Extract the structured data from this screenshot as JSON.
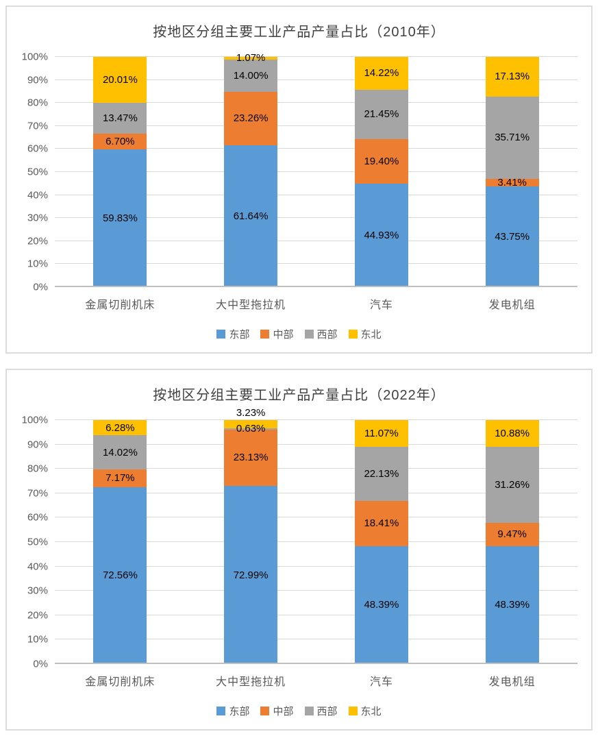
{
  "colors": {
    "east_blue": "#5B9BD5",
    "central_orange": "#ED7D31",
    "west_gray": "#A5A5A5",
    "northeast_yellow": "#FFC000",
    "gridline": "#D9D9D9",
    "axis_line": "#BFBFBF",
    "tick_text": "#595959",
    "category_text": "#595959",
    "title_text": "#404040",
    "data_label_text": "#000000",
    "card_border": "#DCDCDC",
    "card_background": "#FFFFFF"
  },
  "chart_data": [
    {
      "type": "bar",
      "subtype": "percent-stacked-column",
      "title": "按地区分组主要工业产品产量占比（2010年）",
      "categories": [
        "金属切削机床",
        "大中型拖拉机",
        "汽车",
        "发电机组"
      ],
      "series": [
        {
          "name": "东部",
          "color": "#5B9BD5",
          "values": [
            59.83,
            61.64,
            44.93,
            43.75
          ]
        },
        {
          "name": "中部",
          "color": "#ED7D31",
          "values": [
            6.7,
            23.26,
            19.4,
            3.41
          ]
        },
        {
          "name": "西部",
          "color": "#A5A5A5",
          "values": [
            13.47,
            14.0,
            21.45,
            35.71
          ]
        },
        {
          "name": "东北",
          "color": "#FFC000",
          "values": [
            20.01,
            1.07,
            14.22,
            17.13
          ]
        }
      ],
      "data_label_format": "0.00%",
      "ylim": [
        0,
        100
      ],
      "ytick_step": 10,
      "ytick_labels": [
        "0%",
        "10%",
        "20%",
        "30%",
        "40%",
        "50%",
        "60%",
        "70%",
        "80%",
        "90%",
        "100%"
      ],
      "grid": true,
      "legend_position": "bottom",
      "label_overrides": []
    },
    {
      "type": "bar",
      "subtype": "percent-stacked-column",
      "title": "按地区分组主要工业产品产量占比（2022年）",
      "categories": [
        "金属切削机床",
        "大中型拖拉机",
        "汽车",
        "发电机组"
      ],
      "series": [
        {
          "name": "东部",
          "color": "#5B9BD5",
          "values": [
            72.56,
            72.99,
            48.39,
            48.39
          ]
        },
        {
          "name": "中部",
          "color": "#ED7D31",
          "values": [
            7.17,
            23.13,
            18.41,
            9.47
          ]
        },
        {
          "name": "西部",
          "color": "#A5A5A5",
          "values": [
            14.02,
            0.63,
            22.13,
            31.26
          ]
        },
        {
          "name": "东北",
          "color": "#FFC000",
          "values": [
            6.28,
            3.23,
            11.07,
            10.88
          ]
        }
      ],
      "data_label_format": "0.00%",
      "ylim": [
        0,
        100
      ],
      "ytick_step": 10,
      "ytick_labels": [
        "0%",
        "10%",
        "20%",
        "30%",
        "40%",
        "50%",
        "60%",
        "70%",
        "80%",
        "90%",
        "100%"
      ],
      "grid": true,
      "legend_position": "bottom",
      "label_overrides": [
        {
          "category": "大中型拖拉机",
          "series": "东北",
          "position": "above"
        }
      ]
    }
  ]
}
